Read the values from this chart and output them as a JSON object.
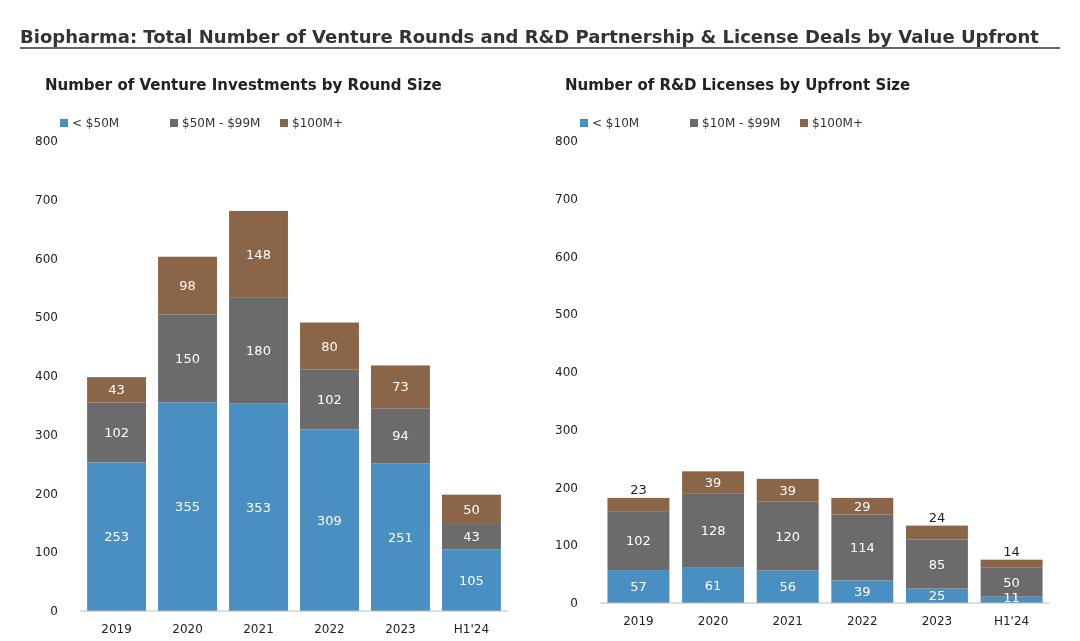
{
  "chart_data": [
    {
      "type": "bar",
      "title": "Biopharma: Total Number of Venture Rounds and R&D Partnership & License Deals by Value Upfront",
      "subtitle": "Number of Venture Investments by Round Size",
      "categories": [
        "2019",
        "2020",
        "2021",
        "2022",
        "2023",
        "H1'24"
      ],
      "stacked": true,
      "data_labels": true,
      "legend": "top left",
      "ylim": [
        0,
        800
      ],
      "yticks": [
        0,
        100,
        200,
        300,
        400,
        500,
        600,
        700,
        800
      ],
      "series": [
        {
          "name": "< $50M",
          "color": "#4a8fc2",
          "values": [
            253,
            355,
            353,
            309,
            251,
            105
          ]
        },
        {
          "name": "$50M - $99M",
          "color": "#6b6b6b",
          "values": [
            102,
            150,
            180,
            102,
            94,
            43
          ]
        },
        {
          "name": "$100M+",
          "color": "#8b6547",
          "values": [
            43,
            98,
            148,
            80,
            73,
            50
          ]
        }
      ]
    },
    {
      "type": "bar",
      "subtitle": "Number of R&D Licenses by Upfront Size",
      "categories": [
        "2019",
        "2020",
        "2021",
        "2022",
        "2023",
        "H1'24"
      ],
      "stacked": true,
      "data_labels": true,
      "legend": "top left",
      "ylim": [
        0,
        800
      ],
      "yticks": [
        0,
        100,
        200,
        300,
        400,
        500,
        600,
        700,
        800
      ],
      "series": [
        {
          "name": "< $10M",
          "color": "#4a8fc2",
          "values": [
            57,
            61,
            56,
            39,
            25,
            11
          ]
        },
        {
          "name": "$10M - $99M",
          "color": "#6b6b6b",
          "values": [
            102,
            128,
            120,
            114,
            85,
            50
          ]
        },
        {
          "name": "$100M+",
          "color": "#8b6547",
          "values": [
            23,
            39,
            39,
            29,
            24,
            14
          ]
        }
      ]
    }
  ]
}
